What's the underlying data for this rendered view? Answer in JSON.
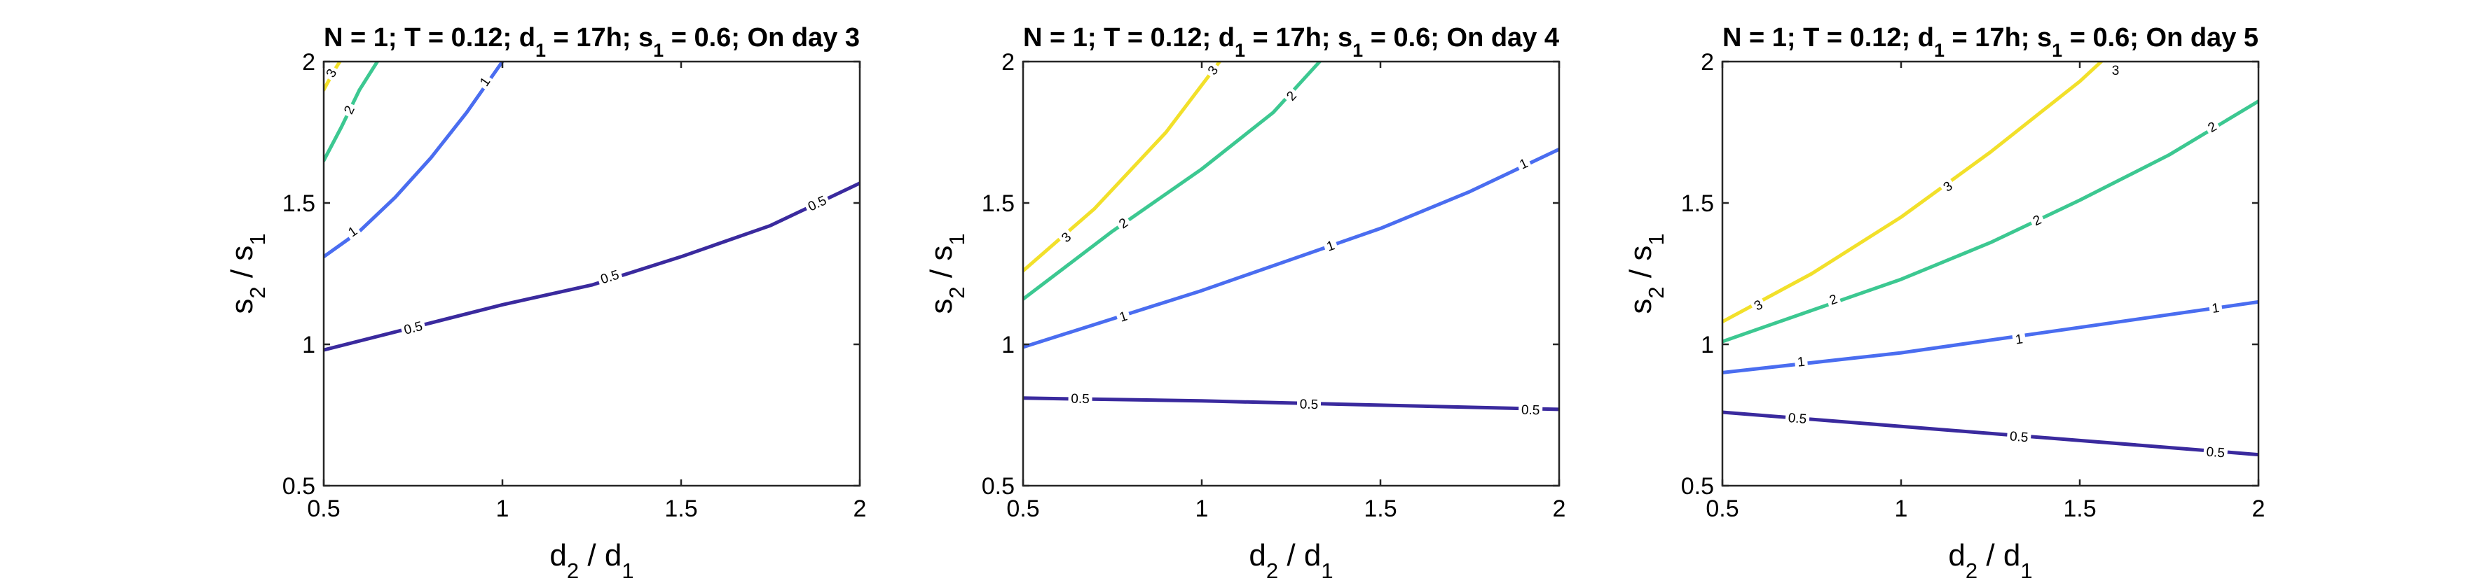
{
  "chart_data": [
    {
      "type": "contour",
      "title": {
        "pre": "N = 1; T = 0.12; d",
        "sub1": "1",
        "mid1": " = 17h; s",
        "sub2": "1",
        "post": " = 0.6; On day 3"
      },
      "xlabel": {
        "main1": "d",
        "sub1": "2",
        "mid": " / d",
        "sub2": "1"
      },
      "ylabel": {
        "main1": "s",
        "sub1": "2",
        "mid": " / s",
        "sub2": "1"
      },
      "xlim": [
        0.5,
        2
      ],
      "ylim": [
        0.5,
        2
      ],
      "xticks": [
        0.5,
        1,
        1.5,
        2
      ],
      "yticks": [
        0.5,
        1,
        1.5,
        2
      ],
      "xtick_labels": [
        "0.5",
        "1",
        "1.5",
        "2"
      ],
      "ytick_labels": [
        "0.5",
        "1",
        "1.5",
        "2"
      ],
      "series": [
        {
          "level": "0.5",
          "color": "#3a2a9e",
          "points": [
            [
              0.5,
              0.98
            ],
            [
              0.75,
              1.06
            ],
            [
              1.0,
              1.14
            ],
            [
              1.25,
              1.21
            ],
            [
              1.5,
              1.31
            ],
            [
              1.75,
              1.42
            ],
            [
              2.0,
              1.57
            ]
          ],
          "labels": [
            [
              0.75,
              1.06
            ],
            [
              1.3,
              1.24
            ],
            [
              1.88,
              1.5
            ]
          ]
        },
        {
          "level": "1",
          "color": "#4a6df0",
          "points": [
            [
              0.5,
              1.31
            ],
            [
              0.6,
              1.4
            ],
            [
              0.7,
              1.52
            ],
            [
              0.8,
              1.66
            ],
            [
              0.9,
              1.82
            ],
            [
              1.0,
              2.0
            ]
          ],
          "labels": [
            [
              0.58,
              1.4
            ],
            [
              0.95,
              1.93
            ]
          ]
        },
        {
          "level": "2",
          "color": "#3cc891",
          "points": [
            [
              0.5,
              1.65
            ],
            [
              0.55,
              1.77
            ],
            [
              0.6,
              1.9
            ],
            [
              0.65,
              2.0
            ]
          ],
          "labels": [
            [
              0.57,
              1.83
            ]
          ]
        },
        {
          "level": "3",
          "color": "#f2e02a",
          "points": [
            [
              0.5,
              1.9
            ],
            [
              0.53,
              1.97
            ],
            [
              0.545,
              2.0
            ]
          ],
          "labels": [
            [
              0.52,
              1.96
            ]
          ]
        }
      ]
    },
    {
      "type": "contour",
      "title": {
        "pre": "N = 1; T = 0.12; d",
        "sub1": "1",
        "mid1": " = 17h; s",
        "sub2": "1",
        "post": " = 0.6; On day 4"
      },
      "xlabel": {
        "main1": "d",
        "sub1": "2",
        "mid": " / d",
        "sub2": "1"
      },
      "ylabel": {
        "main1": "s",
        "sub1": "2",
        "mid": " / s",
        "sub2": "1"
      },
      "xlim": [
        0.5,
        2
      ],
      "ylim": [
        0.5,
        2
      ],
      "xticks": [
        0.5,
        1,
        1.5,
        2
      ],
      "yticks": [
        0.5,
        1,
        1.5,
        2
      ],
      "xtick_labels": [
        "0.5",
        "1",
        "1.5",
        "2"
      ],
      "ytick_labels": [
        "0.5",
        "1",
        "1.5",
        "2"
      ],
      "series": [
        {
          "level": "0.5",
          "color": "#3a2a9e",
          "points": [
            [
              0.5,
              0.81
            ],
            [
              1.0,
              0.8
            ],
            [
              1.5,
              0.785
            ],
            [
              2.0,
              0.77
            ]
          ],
          "labels": [
            [
              0.66,
              0.81
            ],
            [
              1.3,
              0.79
            ],
            [
              1.92,
              0.77
            ]
          ]
        },
        {
          "level": "1",
          "color": "#4a6df0",
          "points": [
            [
              0.5,
              0.99
            ],
            [
              0.75,
              1.09
            ],
            [
              1.0,
              1.19
            ],
            [
              1.25,
              1.3
            ],
            [
              1.5,
              1.41
            ],
            [
              1.75,
              1.54
            ],
            [
              2.0,
              1.69
            ]
          ],
          "labels": [
            [
              0.78,
              1.1
            ],
            [
              1.36,
              1.35
            ],
            [
              1.9,
              1.64
            ]
          ]
        },
        {
          "level": "2",
          "color": "#3cc891",
          "points": [
            [
              0.5,
              1.16
            ],
            [
              0.75,
              1.4
            ],
            [
              1.0,
              1.62
            ],
            [
              1.2,
              1.82
            ],
            [
              1.33,
              2.0
            ]
          ],
          "labels": [
            [
              0.78,
              1.43
            ],
            [
              1.25,
              1.88
            ]
          ]
        },
        {
          "level": "3",
          "color": "#f2e02a",
          "points": [
            [
              0.5,
              1.26
            ],
            [
              0.7,
              1.48
            ],
            [
              0.9,
              1.75
            ],
            [
              1.05,
              2.0
            ]
          ],
          "labels": [
            [
              0.62,
              1.38
            ],
            [
              1.03,
              1.97
            ]
          ]
        }
      ]
    },
    {
      "type": "contour",
      "title": {
        "pre": "N = 1; T = 0.12; d",
        "sub1": "1",
        "mid1": " = 17h; s",
        "sub2": "1",
        "post": " = 0.6; On day 5"
      },
      "xlabel": {
        "main1": "d",
        "sub1": "2",
        "mid": " / d",
        "sub2": "1"
      },
      "ylabel": {
        "main1": "s",
        "sub1": "2",
        "mid": " / s",
        "sub2": "1"
      },
      "xlim": [
        0.5,
        2
      ],
      "ylim": [
        0.5,
        2
      ],
      "xticks": [
        0.5,
        1,
        1.5,
        2
      ],
      "yticks": [
        0.5,
        1,
        1.5,
        2
      ],
      "xtick_labels": [
        "0.5",
        "1",
        "1.5",
        "2"
      ],
      "ytick_labels": [
        "0.5",
        "1",
        "1.5",
        "2"
      ],
      "series": [
        {
          "level": "0.5",
          "color": "#3a2a9e",
          "points": [
            [
              0.5,
              0.76
            ],
            [
              1.0,
              0.71
            ],
            [
              1.5,
              0.66
            ],
            [
              2.0,
              0.61
            ]
          ],
          "labels": [
            [
              0.71,
              0.74
            ],
            [
              1.33,
              0.675
            ],
            [
              1.88,
              0.62
            ]
          ]
        },
        {
          "level": "1",
          "color": "#4a6df0",
          "points": [
            [
              0.5,
              0.9
            ],
            [
              1.0,
              0.97
            ],
            [
              1.5,
              1.06
            ],
            [
              2.0,
              1.15
            ]
          ],
          "labels": [
            [
              0.72,
              0.94
            ],
            [
              1.33,
              1.02
            ],
            [
              1.88,
              1.13
            ]
          ]
        },
        {
          "level": "2",
          "color": "#3cc891",
          "points": [
            [
              0.5,
              1.01
            ],
            [
              0.75,
              1.12
            ],
            [
              1.0,
              1.23
            ],
            [
              1.25,
              1.36
            ],
            [
              1.5,
              1.51
            ],
            [
              1.75,
              1.67
            ],
            [
              2.0,
              1.86
            ]
          ],
          "labels": [
            [
              0.81,
              1.16
            ],
            [
              1.38,
              1.44
            ],
            [
              1.87,
              1.77
            ]
          ]
        },
        {
          "level": "3",
          "color": "#f2e02a",
          "points": [
            [
              0.5,
              1.08
            ],
            [
              0.75,
              1.25
            ],
            [
              1.0,
              1.45
            ],
            [
              1.25,
              1.68
            ],
            [
              1.5,
              1.93
            ],
            [
              1.56,
              2.0
            ]
          ],
          "labels": [
            [
              0.6,
              1.14
            ],
            [
              1.13,
              1.56
            ],
            [
              1.6,
              1.97
            ]
          ]
        }
      ]
    }
  ]
}
